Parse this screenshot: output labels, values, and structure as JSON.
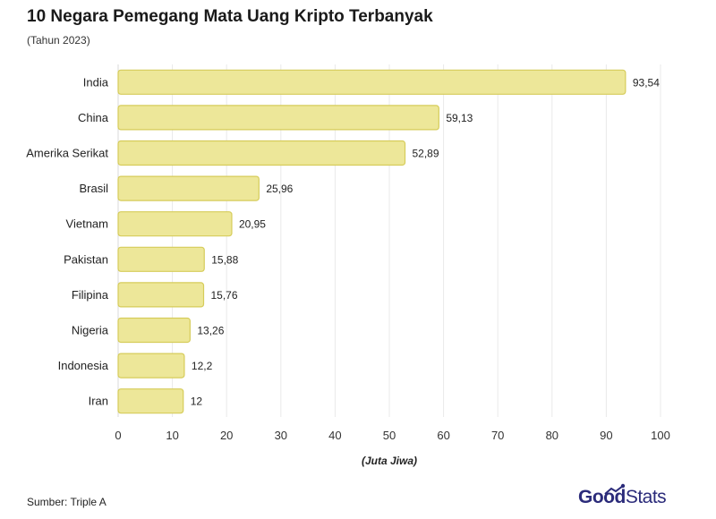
{
  "title": "10 Negara Pemegang Mata Uang Kripto Terbanyak",
  "subtitle": "(Tahun 2023)",
  "source": "Sumber: Triple A",
  "brand": {
    "part1": "Good",
    "part2": "Stats",
    "color": "#2b2b7a"
  },
  "colors": {
    "bar_fill": "#ede799",
    "bar_stroke": "#d6cc5a",
    "grid": "#e9e9e9"
  },
  "chart_data": {
    "type": "bar",
    "orientation": "horizontal",
    "title": "10 Negara Pemegang Mata Uang Kripto Terbanyak",
    "subtitle": "(Tahun 2023)",
    "xlabel": "(Juta Jiwa)",
    "ylabel": "",
    "xlim": [
      0,
      100
    ],
    "xticks": [
      0,
      10,
      20,
      30,
      40,
      50,
      60,
      70,
      80,
      90,
      100
    ],
    "grid": true,
    "categories": [
      "India",
      "China",
      "Amerika Serikat",
      "Brasil",
      "Vietnam",
      "Pakistan",
      "Filipina",
      "Nigeria",
      "Indonesia",
      "Iran"
    ],
    "values": [
      93.54,
      59.13,
      52.89,
      25.96,
      20.95,
      15.88,
      15.76,
      13.26,
      12.2,
      12
    ],
    "value_labels": [
      "93,54",
      "59,13",
      "52,89",
      "25,96",
      "20,95",
      "15,88",
      "15,76",
      "13,26",
      "12,2",
      "12"
    ]
  }
}
